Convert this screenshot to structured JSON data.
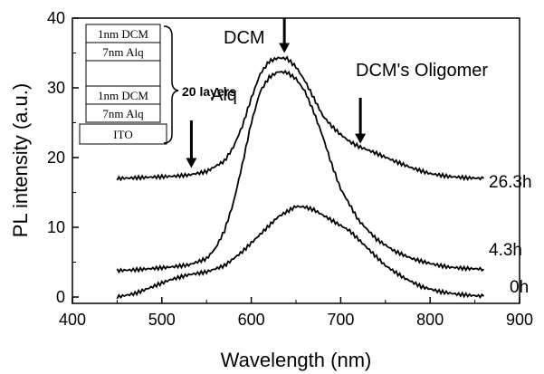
{
  "chart_data": {
    "type": "line",
    "xlabel": "Wavelength (nm)",
    "ylabel": "PL intensity (a.u.)",
    "xlim": [
      400,
      900
    ],
    "ylim": [
      -2,
      40
    ],
    "xticks": [
      400,
      500,
      600,
      700,
      800,
      900
    ],
    "yticks": [
      0,
      10,
      20,
      30,
      40
    ],
    "grid": false,
    "legend": "none",
    "series": [
      {
        "name": "26.3h",
        "x": [
          450,
          470,
          490,
          510,
          530,
          550,
          570,
          580,
          590,
          600,
          610,
          620,
          630,
          640,
          650,
          660,
          670,
          680,
          690,
          700,
          710,
          720,
          740,
          760,
          780,
          800,
          820,
          840,
          860
        ],
        "values": [
          17.0,
          17.1,
          17.2,
          17.3,
          17.5,
          18.0,
          19.5,
          21.5,
          24.5,
          28.5,
          32.0,
          33.8,
          34.3,
          34.2,
          33.0,
          31.0,
          28.5,
          26.0,
          24.5,
          23.3,
          22.3,
          21.6,
          20.6,
          19.5,
          18.5,
          17.7,
          17.3,
          17.1,
          17.0
        ]
      },
      {
        "name": "4.3h",
        "x": [
          450,
          470,
          490,
          510,
          530,
          550,
          560,
          570,
          580,
          590,
          600,
          610,
          620,
          630,
          640,
          650,
          660,
          670,
          680,
          690,
          700,
          720,
          740,
          760,
          780,
          800,
          820,
          840,
          860
        ],
        "values": [
          3.8,
          3.9,
          4.1,
          4.3,
          4.6,
          5.5,
          7.0,
          9.5,
          13.5,
          19.0,
          25.0,
          29.5,
          31.5,
          32.3,
          32.2,
          31.3,
          29.5,
          26.5,
          23.0,
          19.0,
          15.5,
          11.0,
          8.3,
          6.6,
          5.5,
          4.8,
          4.3,
          4.1,
          4.0
        ]
      },
      {
        "name": "0h",
        "x": [
          450,
          470,
          490,
          510,
          530,
          550,
          570,
          590,
          610,
          630,
          650,
          660,
          670,
          690,
          710,
          730,
          750,
          770,
          790,
          810,
          830,
          850,
          860
        ],
        "values": [
          0.0,
          0.5,
          1.5,
          2.5,
          3.2,
          3.6,
          4.5,
          6.5,
          9.0,
          11.5,
          13.0,
          12.9,
          12.5,
          11.0,
          9.5,
          7.0,
          4.5,
          2.8,
          1.5,
          0.8,
          0.4,
          0.2,
          0.1
        ]
      }
    ],
    "curve_labels": [
      "26.3h",
      "4.3h",
      "0h"
    ],
    "annotations": [
      {
        "text": "DCM",
        "arrow_x": 637,
        "arrow_tip_y": 35.0
      },
      {
        "text": "DCM's Oligomer",
        "arrow_x": 722,
        "arrow_tip_y": 22.0
      },
      {
        "text": "Alq",
        "arrow_x": 533,
        "arrow_tip_y": 18.5
      }
    ],
    "inset": {
      "layers": [
        "1nm DCM",
        "7nm  Alq",
        "1nm DCM",
        "7nm  Alq",
        "ITO"
      ],
      "label": "20 layers"
    }
  },
  "colors": {
    "line": "#000000",
    "background": "#ffffff"
  }
}
